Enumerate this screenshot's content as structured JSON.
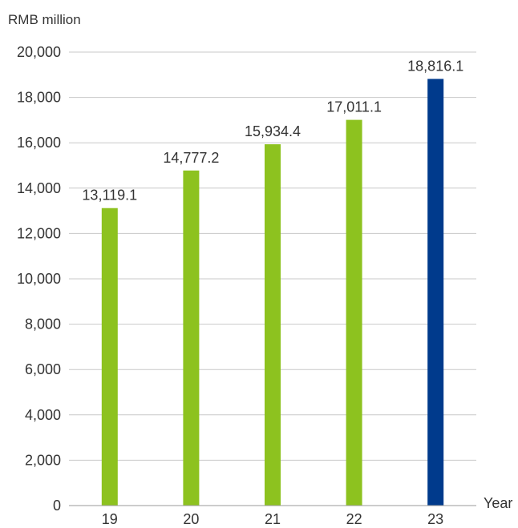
{
  "chart_data": {
    "type": "bar",
    "unit_label": "RMB million",
    "xlabel": "Year",
    "categories": [
      "19",
      "20",
      "21",
      "22",
      "23"
    ],
    "values": [
      13119.1,
      14777.2,
      15934.4,
      17011.1,
      18816.1
    ],
    "value_labels": [
      "13,119.1",
      "14,777.2",
      "15,934.4",
      "17,011.1",
      "18,816.1"
    ],
    "y_ticks": [
      "0",
      "2,000",
      "4,000",
      "6,000",
      "8,000",
      "10,000",
      "12,000",
      "14,000",
      "16,000",
      "18,000",
      "20,000"
    ],
    "ylim": [
      0,
      20000
    ],
    "grid": true,
    "colors": {
      "default_bar": "#8dc21f",
      "highlight_bar": "#003a8c",
      "highlight_category": "23"
    }
  }
}
